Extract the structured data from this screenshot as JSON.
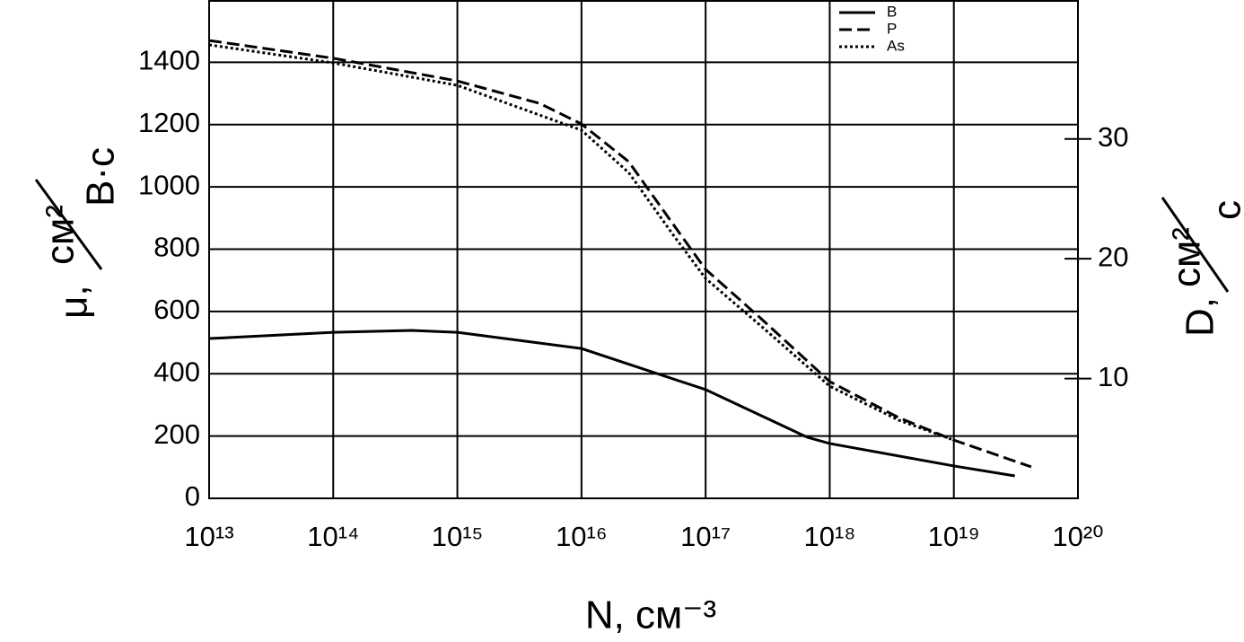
{
  "chart_data": {
    "type": "line",
    "xlabel": "N, см⁻³",
    "ylabel": {
      "symbol": "μ,",
      "numerator": "см²",
      "denominator": "В·с"
    },
    "y2label": {
      "symbol": "D,",
      "numerator": "см²",
      "denominator": "с"
    },
    "xscale": "log",
    "xlim": [
      10000000000000.0,
      1e+20
    ],
    "xticks": [
      {
        "value": 10000000000000.0,
        "label": "10¹³"
      },
      {
        "value": 100000000000000.0,
        "label": "10¹⁴"
      },
      {
        "value": 1000000000000000.0,
        "label": "10¹⁵"
      },
      {
        "value": 1e+16,
        "label": "10¹⁶"
      },
      {
        "value": 1e+17,
        "label": "10¹⁷"
      },
      {
        "value": 1e+18,
        "label": "10¹⁸"
      },
      {
        "value": 1e+19,
        "label": "10¹⁹"
      },
      {
        "value": 1e+20,
        "label": "10²⁰"
      }
    ],
    "ylim": [
      0,
      1600
    ],
    "yticks": [
      0,
      200,
      400,
      600,
      800,
      1000,
      1200,
      1400
    ],
    "y2lim": [
      0,
      41.6
    ],
    "y2ticks": [
      10,
      20,
      30
    ],
    "grid": true,
    "legend": "top-right",
    "series": [
      {
        "name": "B",
        "color": "#000000",
        "dash": "solid",
        "x": [
          10000000000000.0,
          100000000000000.0,
          430000000000000.0,
          1000000000000000.0,
          1e+16,
          1e+17,
          6.6e+17,
          1e+18,
          1e+19,
          3.1e+19
        ],
        "values": [
          513,
          533,
          539,
          533,
          481,
          349,
          196,
          176,
          104,
          72
        ]
      },
      {
        "name": "P",
        "color": "#000000",
        "dash": "dashed",
        "x": [
          10000000000000.0,
          100000000000000.0,
          1000000000000000.0,
          4600000000000000.0,
          1e+16,
          2.4e+16,
          5.5e+16,
          1e+17,
          2.8e+17,
          1e+18,
          3.6e+18,
          1e+19,
          4.2e+19
        ],
        "values": [
          1470,
          1413,
          1340,
          1268,
          1202,
          1081,
          879,
          735,
          577,
          375,
          259,
          187,
          101
        ]
      },
      {
        "name": "As",
        "color": "#000000",
        "dash": "dotted",
        "x": [
          10000000000000.0,
          100000000000000.0,
          1000000000000000.0,
          1e+16,
          2.4e+16,
          5.5e+16,
          1e+17,
          2.8e+17,
          1e+18,
          3.6e+18,
          1e+19
        ],
        "values": [
          1456,
          1398,
          1326,
          1182,
          1046,
          845,
          706,
          553,
          360,
          251,
          187
        ]
      }
    ]
  }
}
